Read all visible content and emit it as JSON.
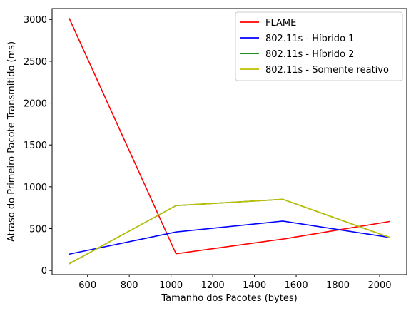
{
  "chart_data": {
    "type": "line",
    "title": "",
    "xlabel": "Tamanho dos Pacotes (bytes)",
    "ylabel": "Atraso do Primeiro Pacote Transmitido (ms)",
    "xlim": [
      430,
      2130
    ],
    "ylim": [
      -50,
      3130
    ],
    "xticks": [
      600,
      800,
      1000,
      1200,
      1400,
      1600,
      1800,
      2000
    ],
    "yticks": [
      0,
      500,
      1000,
      1500,
      2000,
      2500,
      3000
    ],
    "grid": false,
    "legend_position": "top-right",
    "x": [
      512,
      1024,
      1536,
      2048
    ],
    "series": [
      {
        "name": "FLAME",
        "color": "#ff0000",
        "values": [
          3015,
          200,
          375,
          585
        ]
      },
      {
        "name": "802.11s - Híbrido 1",
        "color": "#0000ff",
        "values": [
          195,
          460,
          590,
          395
        ]
      },
      {
        "name": "802.11s - Híbrido 2",
        "color": "#008000",
        "values": [
          80,
          775,
          850,
          395
        ]
      },
      {
        "name": "802.11s - Somente reativo",
        "color": "#bfbf00",
        "values": [
          80,
          775,
          850,
          395
        ]
      }
    ]
  }
}
